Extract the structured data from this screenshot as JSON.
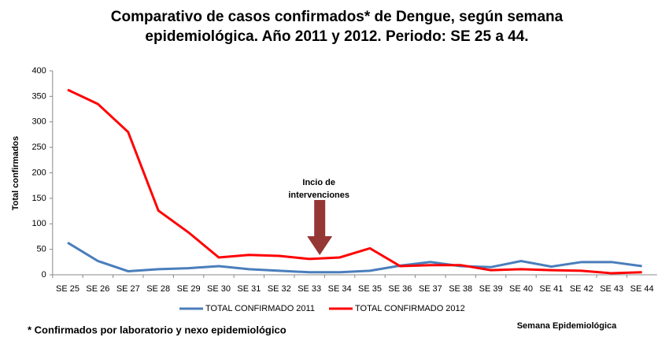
{
  "chart_data": {
    "type": "line",
    "title": [
      "Comparativo de casos confirmados* de Dengue, según semana",
      "epidemiológica. Año 2011 y 2012. Periodo: SE 25 a 44."
    ],
    "y_label": "Total confirmados",
    "x_label": "Semana Epidemiológica",
    "footnote": "* Confirmados por laboratorio y nexo epidemiológico",
    "annotation": [
      "Incio de",
      "intervenciones"
    ],
    "categories": [
      "SE 25",
      "SE 26",
      "SE 27",
      "SE 28",
      "SE 29",
      "SE 30",
      "SE 31",
      "SE 32",
      "SE 33",
      "SE 34",
      "SE 35",
      "SE 36",
      "SE 37",
      "SE 38",
      "SE 39",
      "SE 40",
      "SE 41",
      "SE 42",
      "SE 43",
      "SE 44"
    ],
    "series": [
      {
        "name": "TOTAL CONFIRMADO 2011",
        "color": "#4a7ebb",
        "values": [
          63,
          27,
          7,
          11,
          13,
          17,
          11,
          8,
          5,
          5,
          8,
          18,
          25,
          17,
          15,
          27,
          16,
          25,
          25,
          17
        ]
      },
      {
        "name": "TOTAL CONFIRMADO 2012",
        "color": "#ff0000",
        "values": [
          363,
          335,
          280,
          126,
          83,
          34,
          39,
          37,
          31,
          34,
          52,
          17,
          19,
          19,
          9,
          11,
          9,
          8,
          3,
          5
        ]
      }
    ],
    "ylim": [
      0,
      400
    ],
    "yticks": [
      0,
      50,
      100,
      150,
      200,
      250,
      300,
      350,
      400
    ],
    "grid": false,
    "legend": "bottom"
  }
}
